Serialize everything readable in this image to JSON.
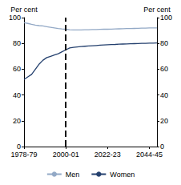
{
  "chart_data": {
    "type": "line",
    "ylabel": "Per cent",
    "categories": [
      "1978-79",
      null,
      null,
      null,
      null,
      null,
      null,
      null,
      null,
      null,
      null,
      "2000-01",
      null,
      null,
      null,
      null,
      null,
      null,
      null,
      null,
      null,
      null,
      "2022-23",
      null,
      null,
      null,
      null,
      null,
      null,
      null,
      null,
      null,
      null,
      "2044-45",
      null,
      null
    ],
    "series": [
      {
        "name": "Men",
        "color": "#93A9C6",
        "values": [
          96,
          95.5,
          94.8,
          94.2,
          93.8,
          93.5,
          93,
          92.5,
          92,
          91.5,
          91.2,
          91,
          90.6,
          90.5,
          90.5,
          90.5,
          90.6,
          90.6,
          90.7,
          90.8,
          90.9,
          91,
          91,
          91.1,
          91.2,
          91.3,
          91.4,
          91.5,
          91.5,
          91.6,
          91.7,
          91.8,
          91.9,
          92,
          92,
          92
        ]
      },
      {
        "name": "Women",
        "color": "#24406E",
        "values": [
          52,
          54,
          56,
          60,
          64,
          67,
          69,
          70,
          71,
          72,
          73.5,
          75,
          76.5,
          77,
          77.3,
          77.6,
          77.8,
          78,
          78.2,
          78.4,
          78.6,
          78.8,
          79,
          79.1,
          79.2,
          79.4,
          79.5,
          79.6,
          79.7,
          79.8,
          79.9,
          80,
          80.1,
          80.2,
          80.2,
          80.3
        ]
      }
    ],
    "vline": "2000-01",
    "ylim": [
      0,
      100
    ],
    "yticks": [
      0,
      20,
      40,
      60,
      80,
      100
    ],
    "grid": false,
    "legend": "bottom"
  }
}
